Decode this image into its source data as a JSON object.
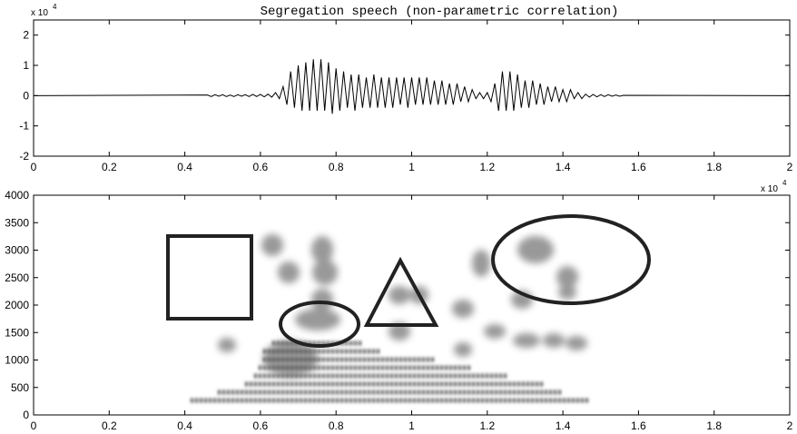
{
  "chart_data": [
    {
      "type": "line",
      "title": "Segregation speech (non-parametric correlation)",
      "y_multiplier": {
        "base": "x 10",
        "exponent": "4"
      },
      "xlim": [
        0,
        2
      ],
      "xticks": [
        0,
        0.2,
        0.4,
        0.6,
        0.8,
        1,
        1.2,
        1.4,
        1.6,
        1.8,
        2
      ],
      "ylim": [
        -2,
        2.5
      ],
      "yticks": [
        -2,
        -1,
        0,
        1,
        2
      ],
      "color": "#000000",
      "x": [
        0,
        0.46,
        0.47,
        0.48,
        0.49,
        0.5,
        0.51,
        0.52,
        0.53,
        0.54,
        0.55,
        0.56,
        0.57,
        0.58,
        0.59,
        0.6,
        0.61,
        0.62,
        0.63,
        0.64,
        0.65,
        0.66,
        0.67,
        0.68,
        0.69,
        0.7,
        0.71,
        0.72,
        0.73,
        0.74,
        0.75,
        0.76,
        0.77,
        0.78,
        0.79,
        0.8,
        0.81,
        0.82,
        0.83,
        0.84,
        0.85,
        0.86,
        0.87,
        0.88,
        0.89,
        0.9,
        0.91,
        0.92,
        0.93,
        0.94,
        0.95,
        0.96,
        0.97,
        0.98,
        0.99,
        1,
        1.01,
        1.02,
        1.03,
        1.04,
        1.05,
        1.06,
        1.07,
        1.08,
        1.09,
        1.1,
        1.11,
        1.12,
        1.13,
        1.14,
        1.15,
        1.16,
        1.17,
        1.18,
        1.19,
        1.2,
        1.21,
        1.22,
        1.23,
        1.24,
        1.25,
        1.26,
        1.27,
        1.28,
        1.29,
        1.3,
        1.31,
        1.32,
        1.33,
        1.34,
        1.35,
        1.36,
        1.37,
        1.38,
        1.39,
        1.4,
        1.41,
        1.42,
        1.43,
        1.44,
        1.45,
        1.46,
        1.47,
        1.48,
        1.49,
        1.5,
        1.51,
        1.52,
        1.53,
        1.54,
        1.55,
        1.56,
        2
      ],
      "values": [
        0,
        0.02,
        -0.03,
        0.03,
        -0.02,
        0.03,
        -0.03,
        0.02,
        -0.03,
        0.03,
        -0.02,
        0.03,
        -0.03,
        0.04,
        -0.03,
        0.04,
        -0.04,
        0.05,
        -0.05,
        0.1,
        -0.1,
        0.3,
        -0.3,
        0.8,
        -0.4,
        1.0,
        -0.5,
        1.1,
        -0.5,
        1.2,
        -0.5,
        1.2,
        -0.5,
        1.1,
        -0.6,
        0.9,
        -0.5,
        0.8,
        -0.4,
        0.7,
        -0.5,
        0.7,
        -0.4,
        0.6,
        -0.4,
        0.7,
        -0.4,
        0.6,
        -0.4,
        0.6,
        -0.4,
        0.6,
        -0.3,
        0.6,
        -0.4,
        0.6,
        -0.3,
        0.6,
        -0.3,
        0.6,
        -0.3,
        0.5,
        -0.3,
        0.5,
        -0.3,
        0.4,
        -0.3,
        0.4,
        -0.2,
        0.3,
        -0.2,
        0.2,
        -0.1,
        0.1,
        -0.1,
        0.1,
        -0.2,
        0.4,
        -0.5,
        0.8,
        -0.5,
        0.8,
        -0.5,
        0.7,
        -0.4,
        0.5,
        -0.4,
        0.5,
        -0.3,
        0.4,
        -0.3,
        0.3,
        -0.2,
        0.3,
        -0.2,
        0.2,
        -0.2,
        0.2,
        -0.1,
        0.1,
        -0.1,
        0.05,
        -0.05,
        0.04,
        -0.04,
        0.03,
        -0.03,
        0.03,
        -0.02,
        0.02,
        -0.02,
        0.01,
        0
      ]
    },
    {
      "type": "spectrogram",
      "x_multiplier": {
        "base": "x 10",
        "exponent": "4"
      },
      "xlim": [
        0,
        2
      ],
      "xticks": [
        0,
        0.2,
        0.4,
        0.6,
        0.8,
        1,
        1.2,
        1.4,
        1.6,
        1.8,
        2
      ],
      "ylim": [
        0,
        4000
      ],
      "yticks": [
        0,
        500,
        1000,
        1500,
        2000,
        2500,
        3000,
        3500,
        4000
      ]
    }
  ]
}
